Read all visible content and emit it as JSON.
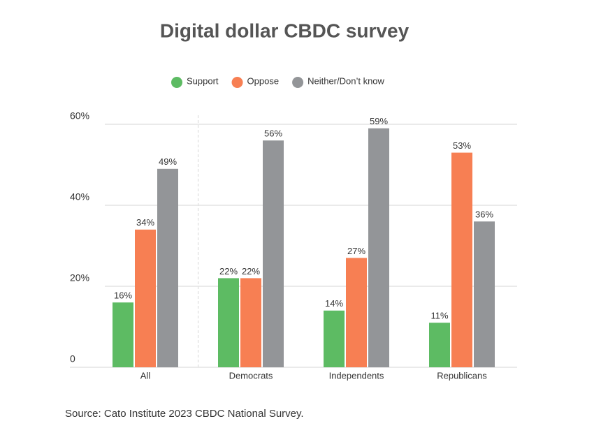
{
  "chart_data": {
    "type": "bar",
    "title": "Digital dollar CBDC survey",
    "source": "Source: Cato Institute 2023 CBDC National Survey.",
    "categories": [
      "All",
      "Democrats",
      "Independents",
      "Republicans"
    ],
    "series": [
      {
        "name": "Support",
        "color": "#5dbb63",
        "values": [
          16,
          22,
          14,
          11
        ],
        "value_labels": [
          "16%",
          "22%",
          "14%",
          "11%"
        ]
      },
      {
        "name": "Oppose",
        "color": "#f77f53",
        "values": [
          34,
          22,
          27,
          53
        ],
        "value_labels": [
          "34%",
          "22%",
          "27%",
          "53%"
        ]
      },
      {
        "name": "Neither/Don’t know",
        "color": "#939598",
        "values": [
          49,
          56,
          59,
          36
        ],
        "value_labels": [
          "49%",
          "56%",
          "59%",
          "36%"
        ]
      }
    ],
    "ylim": [
      0,
      60
    ],
    "yticks": [
      0,
      {
        "value": 20,
        "label": "20%"
      },
      {
        "value": 40,
        "label": "40%"
      },
      {
        "value": 60,
        "label": "60%"
      }
    ],
    "grid": true,
    "legend": "top"
  }
}
